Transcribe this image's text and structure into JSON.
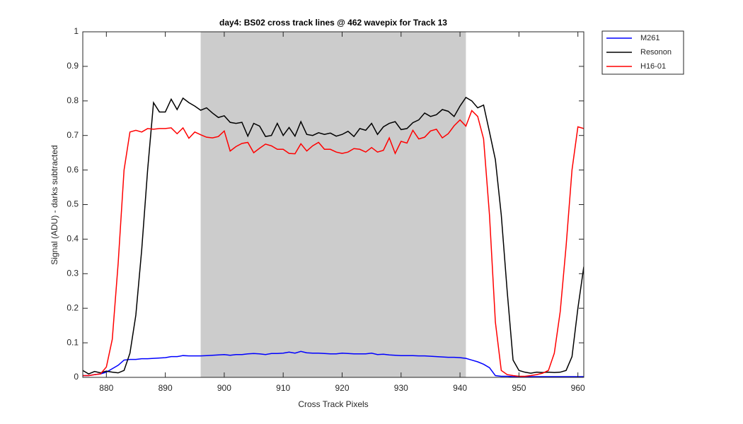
{
  "chart_data": {
    "type": "line",
    "title": "day4: BS02  cross track lines @ 462 wavepix for Track 13",
    "xlabel": "Cross Track Pixels",
    "ylabel": "Signal (ADU) - darks subtracted",
    "xlim": [
      876,
      961
    ],
    "ylim": [
      0,
      1
    ],
    "xticks": [
      880,
      890,
      900,
      910,
      920,
      930,
      940,
      950,
      960
    ],
    "yticks": [
      0,
      0.1,
      0.2,
      0.3,
      0.4,
      0.5,
      0.6,
      0.7,
      0.8,
      0.9,
      1
    ],
    "shaded_x": [
      896,
      941
    ],
    "shaded_color": "#cccccc",
    "legend": "outside-top-right",
    "x": [
      876,
      877,
      878,
      879,
      880,
      881,
      882,
      883,
      884,
      885,
      886,
      887,
      888,
      889,
      890,
      891,
      892,
      893,
      894,
      895,
      896,
      897,
      898,
      899,
      900,
      901,
      902,
      903,
      904,
      905,
      906,
      907,
      908,
      909,
      910,
      911,
      912,
      913,
      914,
      915,
      916,
      917,
      918,
      919,
      920,
      921,
      922,
      923,
      924,
      925,
      926,
      927,
      928,
      929,
      930,
      931,
      932,
      933,
      934,
      935,
      936,
      937,
      938,
      939,
      940,
      941,
      942,
      943,
      944,
      945,
      946,
      947,
      948,
      949,
      950,
      951,
      952,
      953,
      954,
      955,
      956,
      957,
      958,
      959,
      960,
      961
    ],
    "series": [
      {
        "name": "M261",
        "color": "#0000ff",
        "values": [
          0.005,
          0.005,
          0.008,
          0.01,
          0.015,
          0.025,
          0.035,
          0.05,
          0.052,
          0.052,
          0.054,
          0.054,
          0.055,
          0.056,
          0.057,
          0.06,
          0.06,
          0.063,
          0.062,
          0.062,
          0.062,
          0.063,
          0.064,
          0.065,
          0.066,
          0.064,
          0.066,
          0.066,
          0.068,
          0.069,
          0.068,
          0.066,
          0.069,
          0.069,
          0.07,
          0.073,
          0.07,
          0.075,
          0.071,
          0.07,
          0.07,
          0.069,
          0.068,
          0.068,
          0.07,
          0.069,
          0.068,
          0.068,
          0.068,
          0.07,
          0.066,
          0.067,
          0.065,
          0.064,
          0.063,
          0.063,
          0.063,
          0.062,
          0.062,
          0.061,
          0.06,
          0.059,
          0.058,
          0.058,
          0.057,
          0.055,
          0.05,
          0.045,
          0.038,
          0.028,
          0.005,
          0.003,
          0.003,
          0.002,
          0.002,
          0.002,
          0.002,
          0.002,
          0.002,
          0.002,
          0.002,
          0.002,
          0.002,
          0.002,
          0.002,
          0.002
        ]
      },
      {
        "name": "Resonon",
        "color": "#000000",
        "values": [
          0.02,
          0.01,
          0.017,
          0.013,
          0.018,
          0.015,
          0.013,
          0.02,
          0.07,
          0.18,
          0.37,
          0.6,
          0.795,
          0.768,
          0.768,
          0.805,
          0.775,
          0.808,
          0.795,
          0.785,
          0.773,
          0.78,
          0.765,
          0.752,
          0.757,
          0.738,
          0.735,
          0.738,
          0.698,
          0.735,
          0.727,
          0.697,
          0.7,
          0.735,
          0.7,
          0.723,
          0.698,
          0.74,
          0.703,
          0.7,
          0.708,
          0.703,
          0.707,
          0.698,
          0.703,
          0.712,
          0.697,
          0.72,
          0.715,
          0.735,
          0.703,
          0.725,
          0.735,
          0.74,
          0.717,
          0.72,
          0.737,
          0.745,
          0.765,
          0.755,
          0.76,
          0.775,
          0.77,
          0.755,
          0.785,
          0.81,
          0.8,
          0.78,
          0.788,
          0.71,
          0.63,
          0.47,
          0.25,
          0.05,
          0.02,
          0.015,
          0.012,
          0.015,
          0.014,
          0.015,
          0.014,
          0.015,
          0.02,
          0.06,
          0.2,
          0.32
        ]
      },
      {
        "name": "H16-01",
        "color": "#ff0000",
        "values": [
          0.005,
          0.005,
          0.008,
          0.01,
          0.03,
          0.11,
          0.33,
          0.6,
          0.71,
          0.715,
          0.71,
          0.72,
          0.718,
          0.72,
          0.72,
          0.722,
          0.705,
          0.722,
          0.692,
          0.71,
          0.702,
          0.695,
          0.693,
          0.697,
          0.713,
          0.655,
          0.668,
          0.677,
          0.68,
          0.65,
          0.663,
          0.675,
          0.67,
          0.66,
          0.66,
          0.648,
          0.647,
          0.676,
          0.655,
          0.67,
          0.68,
          0.66,
          0.66,
          0.652,
          0.648,
          0.652,
          0.662,
          0.66,
          0.652,
          0.665,
          0.652,
          0.657,
          0.693,
          0.648,
          0.683,
          0.678,
          0.715,
          0.69,
          0.695,
          0.713,
          0.718,
          0.693,
          0.705,
          0.728,
          0.745,
          0.727,
          0.772,
          0.755,
          0.69,
          0.47,
          0.16,
          0.02,
          0.008,
          0.005,
          0.003,
          0.003,
          0.005,
          0.008,
          0.012,
          0.02,
          0.07,
          0.19,
          0.38,
          0.6,
          0.725,
          0.72
        ]
      }
    ]
  }
}
